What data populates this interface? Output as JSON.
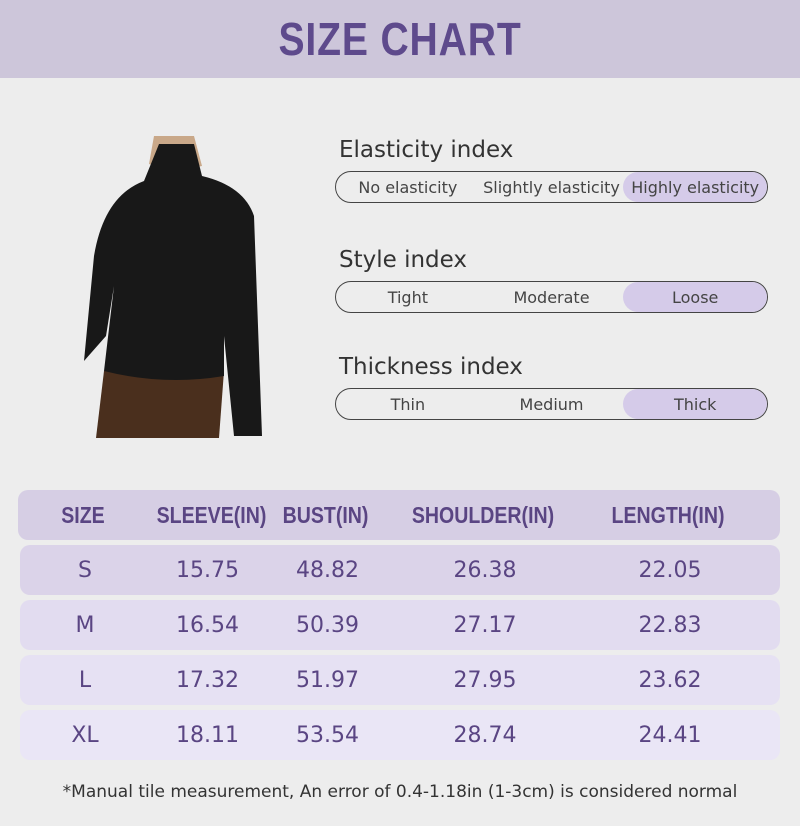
{
  "title": "SIZE CHART",
  "colors": {
    "accent": "#5e4a8c",
    "banner": "#cdc6da",
    "selected": "#d5cbe9"
  },
  "indices": [
    {
      "label": "Elasticity index",
      "options": [
        "No elasticity",
        "Slightly elasticity",
        "Highly elasticity"
      ],
      "selected": 2
    },
    {
      "label": "Style index",
      "options": [
        "Tight",
        "Moderate",
        "Loose"
      ],
      "selected": 2
    },
    {
      "label": "Thickness index",
      "options": [
        "Thin",
        "Medium",
        "Thick"
      ],
      "selected": 2
    }
  ],
  "table": {
    "headers": [
      "SIZE",
      "SLEEVE(IN)",
      "BUST(IN)",
      "SHOULDER(IN)",
      "LENGTH(IN)"
    ],
    "rows": [
      [
        "S",
        "15.75",
        "48.82",
        "26.38",
        "22.05"
      ],
      [
        "M",
        "16.54",
        "50.39",
        "27.17",
        "22.83"
      ],
      [
        "L",
        "17.32",
        "51.97",
        "27.95",
        "23.62"
      ],
      [
        "XL",
        "18.11",
        "53.54",
        "28.74",
        "24.41"
      ]
    ]
  },
  "note": "*Manual tile measurement, An error of 0.4-1.18in (1-3cm) is considered normal"
}
